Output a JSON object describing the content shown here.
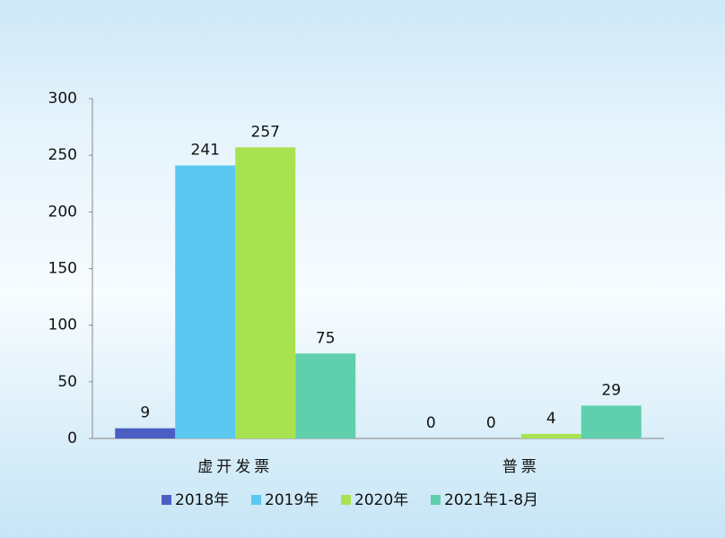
{
  "chart_data": {
    "type": "bar",
    "categories": [
      "虚开发票",
      "普票"
    ],
    "series": [
      {
        "name": "2018年",
        "color": "#4a5ec4",
        "values": [
          9,
          0
        ]
      },
      {
        "name": "2019年",
        "color": "#5ac8f0",
        "values": [
          241,
          0
        ]
      },
      {
        "name": "2020年",
        "color": "#a9e251",
        "values": [
          257,
          4
        ]
      },
      {
        "name": "2021年1-8月",
        "color": "#5fd0ab",
        "values": [
          75,
          29
        ]
      }
    ],
    "ylim": [
      0,
      300
    ],
    "yticks": [
      0,
      50,
      100,
      150,
      200,
      250,
      300
    ],
    "grid": false,
    "legend": "bottom"
  }
}
